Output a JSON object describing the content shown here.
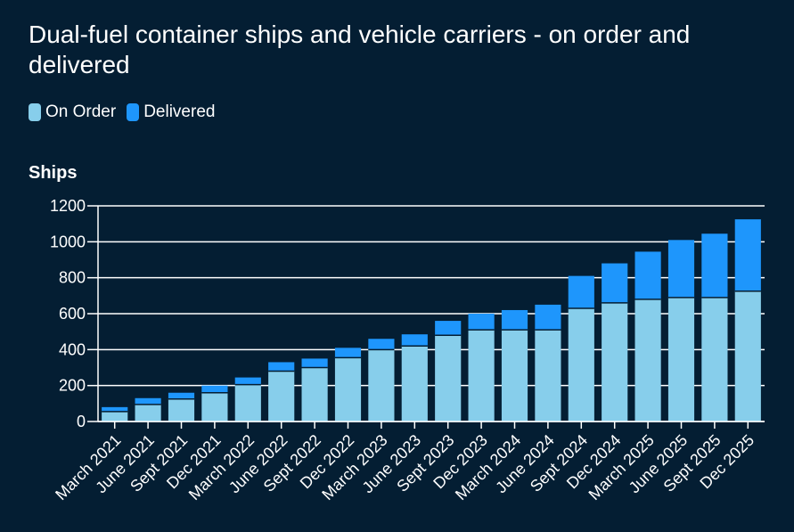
{
  "chart_data": {
    "type": "bar",
    "stacked": true,
    "title": "Dual-fuel container ships and vehicle carriers - on order and delivered",
    "ylabel": "Ships",
    "xlabel": "",
    "ylim": [
      0,
      1200
    ],
    "yticks": [
      0,
      200,
      400,
      600,
      800,
      1000,
      1200
    ],
    "grid": true,
    "legend_placement": "top-left",
    "categories": [
      "March 2021",
      "June 2021",
      "Sept 2021",
      "Dec 2021",
      "March 2022",
      "June 2022",
      "Sept 2022",
      "Dec 2022",
      "March 2023",
      "June 2023",
      "Sept 2023",
      "Dec 2023",
      "March 2024",
      "June 2024",
      "Sept 2024",
      "Dec 2024",
      "March 2025",
      "June 2025",
      "Sept 2025",
      "Dec 2025"
    ],
    "series": [
      {
        "name": "On Order",
        "color": "#87ceeb",
        "values": [
          55,
          95,
          125,
          160,
          205,
          280,
          300,
          355,
          400,
          420,
          480,
          510,
          510,
          510,
          630,
          660,
          680,
          690,
          690,
          725
        ]
      },
      {
        "name": "Delivered",
        "color": "#1e96fc",
        "values": [
          25,
          35,
          35,
          40,
          40,
          50,
          50,
          55,
          60,
          65,
          80,
          90,
          110,
          140,
          180,
          220,
          265,
          320,
          355,
          400
        ]
      }
    ]
  }
}
